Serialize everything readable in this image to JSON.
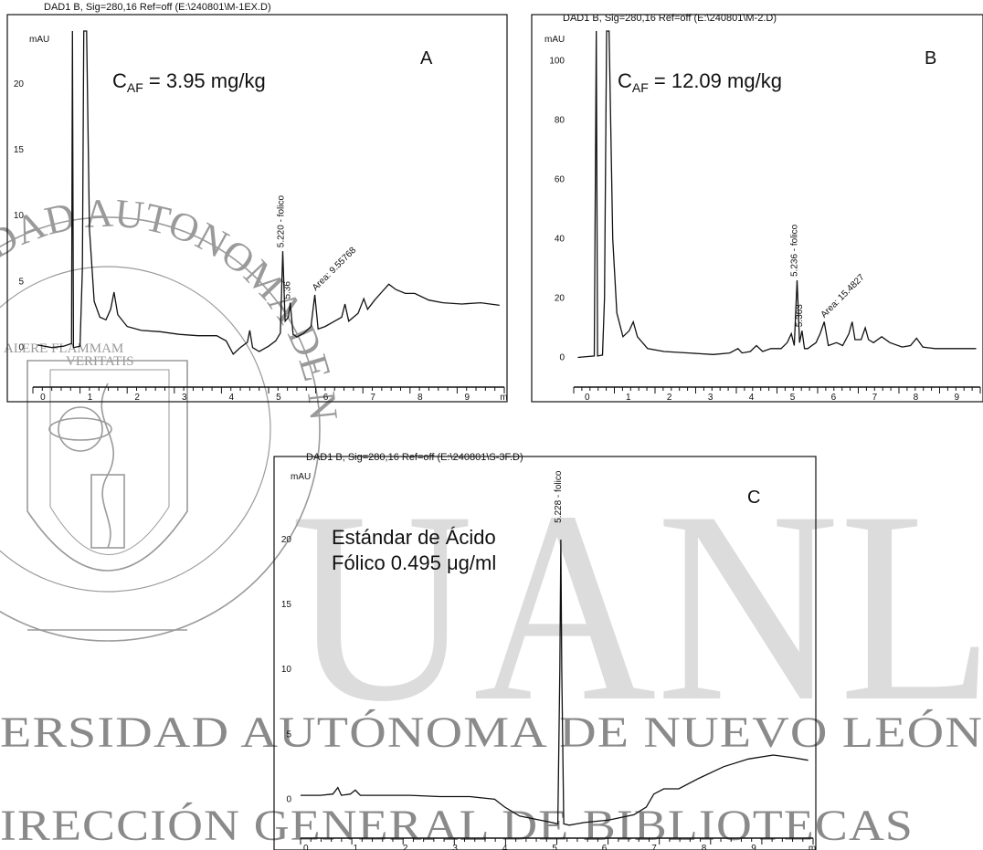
{
  "watermark": {
    "big": "UANL",
    "line1": "ERSIDAD AUTÓNOMA DE NUEVO LEÓN",
    "line2": "IRECCIÓN GENERAL DE BIBLIOTECAS",
    "seal_ring": "UNIVERSIDAD AUTONOMA DE NUEVO LEON",
    "seal_motto1": "ALERE FLAMMAM",
    "seal_motto2": "VERITATIS"
  },
  "colors": {
    "ink": "#111111",
    "watermark_light": "#dcdcdc",
    "watermark_dark": "#8a8a8a"
  },
  "chart_data": [
    {
      "type": "line",
      "panel_letter": "A",
      "header": "DAD1 B, Sig=280,16 Ref=off (E:\\240801\\M-1EX.D)",
      "ylabel": "mAU",
      "annotation_main": "C",
      "annotation_sub": "AF",
      "annotation_rest": " = 3.95 mg/kg",
      "xlim": [
        -0.1,
        9.9
      ],
      "ylim": [
        -3,
        24
      ],
      "xticks": [
        "0",
        "1",
        "2",
        "3",
        "4",
        "5",
        "6",
        "7",
        "8",
        "9",
        "m"
      ],
      "yticks": [
        {
          "v": 0,
          "t": "0"
        },
        {
          "v": 5,
          "t": "5"
        },
        {
          "v": 10,
          "t": "10"
        },
        {
          "v": 15,
          "t": "15"
        },
        {
          "v": 20,
          "t": "20"
        }
      ],
      "peak_labels": [
        {
          "x": 5.22,
          "y": 7.3,
          "text": "5.220 - folico"
        },
        {
          "x": 5.36,
          "y": 3.4,
          "text": "5.36"
        },
        {
          "x": 5.9,
          "y": 4.0,
          "text": "Area: 9.55768"
        }
      ],
      "points": [
        [
          0.0,
          0.2
        ],
        [
          0.3,
          0.0
        ],
        [
          0.55,
          0.1
        ],
        [
          0.72,
          0.3
        ],
        [
          0.74,
          24
        ],
        [
          0.76,
          0.0
        ],
        [
          0.9,
          0.1
        ],
        [
          0.95,
          6
        ],
        [
          0.98,
          24
        ],
        [
          1.04,
          24
        ],
        [
          1.1,
          9
        ],
        [
          1.2,
          3.5
        ],
        [
          1.32,
          2.3
        ],
        [
          1.45,
          2.1
        ],
        [
          1.55,
          2.9
        ],
        [
          1.62,
          4.2
        ],
        [
          1.7,
          2.5
        ],
        [
          1.9,
          1.6
        ],
        [
          2.2,
          1.3
        ],
        [
          2.6,
          1.2
        ],
        [
          3.0,
          1.0
        ],
        [
          3.4,
          0.9
        ],
        [
          3.8,
          0.9
        ],
        [
          4.0,
          0.5
        ],
        [
          4.15,
          -0.5
        ],
        [
          4.3,
          0.0
        ],
        [
          4.45,
          0.4
        ],
        [
          4.5,
          1.3
        ],
        [
          4.56,
          0.0
        ],
        [
          4.7,
          -0.3
        ],
        [
          4.9,
          0.1
        ],
        [
          5.05,
          0.5
        ],
        [
          5.15,
          1.1
        ],
        [
          5.2,
          7.3
        ],
        [
          5.25,
          2.0
        ],
        [
          5.32,
          2.3
        ],
        [
          5.36,
          3.4
        ],
        [
          5.42,
          1.0
        ],
        [
          5.5,
          0.8
        ],
        [
          5.65,
          1.1
        ],
        [
          5.8,
          1.6
        ],
        [
          5.88,
          4.0
        ],
        [
          5.95,
          1.4
        ],
        [
          6.1,
          1.6
        ],
        [
          6.3,
          2.0
        ],
        [
          6.45,
          2.3
        ],
        [
          6.52,
          3.3
        ],
        [
          6.6,
          2.0
        ],
        [
          6.8,
          2.6
        ],
        [
          6.92,
          3.7
        ],
        [
          7.0,
          2.9
        ],
        [
          7.15,
          3.6
        ],
        [
          7.3,
          4.2
        ],
        [
          7.45,
          4.8
        ],
        [
          7.6,
          4.4
        ],
        [
          7.8,
          4.1
        ],
        [
          8.0,
          4.1
        ],
        [
          8.3,
          3.6
        ],
        [
          8.6,
          3.4
        ],
        [
          9.0,
          3.3
        ],
        [
          9.4,
          3.4
        ],
        [
          9.8,
          3.2
        ]
      ]
    },
    {
      "type": "line",
      "panel_letter": "B",
      "header": "DAD1 B, Sig=280,16 Ref=off (E:\\240801\\M-2.D)",
      "ylabel": "mAU",
      "annotation_main": "C",
      "annotation_sub": "AF",
      "annotation_rest": " = 12.09 mg/kg",
      "xlim": [
        -0.2,
        9.7
      ],
      "ylim": [
        -10,
        110
      ],
      "xticks": [
        "0",
        "1",
        "2",
        "3",
        "4",
        "5",
        "6",
        "7",
        "8",
        "9"
      ],
      "yticks": [
        {
          "v": 0,
          "t": "0"
        },
        {
          "v": 20,
          "t": "20"
        },
        {
          "v": 40,
          "t": "40"
        },
        {
          "v": 60,
          "t": "60"
        },
        {
          "v": 80,
          "t": "80"
        },
        {
          "v": 100,
          "t": "100"
        }
      ],
      "peak_labels": [
        {
          "x": 5.24,
          "y": 26,
          "text": "5.236 - folico"
        },
        {
          "x": 5.36,
          "y": 9,
          "text": "5.363"
        },
        {
          "x": 5.9,
          "y": 12,
          "text": "Area: 15.4827"
        }
      ],
      "points": [
        [
          -0.1,
          0.0
        ],
        [
          0.3,
          0.5
        ],
        [
          0.35,
          110
        ],
        [
          0.38,
          0.5
        ],
        [
          0.5,
          0.8
        ],
        [
          0.55,
          20
        ],
        [
          0.6,
          110
        ],
        [
          0.66,
          110
        ],
        [
          0.75,
          40
        ],
        [
          0.85,
          15
        ],
        [
          1.0,
          7
        ],
        [
          1.15,
          9
        ],
        [
          1.25,
          12
        ],
        [
          1.35,
          7
        ],
        [
          1.6,
          3
        ],
        [
          2.0,
          2
        ],
        [
          2.6,
          1.5
        ],
        [
          3.2,
          1
        ],
        [
          3.6,
          1.5
        ],
        [
          3.8,
          3
        ],
        [
          3.9,
          1.5
        ],
        [
          4.1,
          2
        ],
        [
          4.25,
          4
        ],
        [
          4.4,
          2
        ],
        [
          4.6,
          3
        ],
        [
          4.85,
          3
        ],
        [
          5.0,
          5
        ],
        [
          5.1,
          8
        ],
        [
          5.17,
          4
        ],
        [
          5.24,
          26
        ],
        [
          5.3,
          5
        ],
        [
          5.36,
          9
        ],
        [
          5.42,
          3
        ],
        [
          5.5,
          3
        ],
        [
          5.7,
          5
        ],
        [
          5.8,
          8
        ],
        [
          5.9,
          12
        ],
        [
          6.0,
          4
        ],
        [
          6.2,
          5
        ],
        [
          6.35,
          4
        ],
        [
          6.5,
          8
        ],
        [
          6.58,
          12
        ],
        [
          6.65,
          6
        ],
        [
          6.8,
          6
        ],
        [
          6.9,
          10
        ],
        [
          6.98,
          6
        ],
        [
          7.1,
          5
        ],
        [
          7.3,
          7
        ],
        [
          7.5,
          5
        ],
        [
          7.8,
          3.5
        ],
        [
          8.0,
          4
        ],
        [
          8.15,
          6.5
        ],
        [
          8.3,
          3.5
        ],
        [
          8.6,
          3
        ],
        [
          9.0,
          3
        ],
        [
          9.6,
          3
        ]
      ]
    },
    {
      "type": "line",
      "panel_letter": "C",
      "header": "DAD1 B, Sig=280,16 Ref=off (E:\\240801\\S-3F.D)",
      "ylabel": "mAU",
      "annotation_line1": "Estándar de Ácido",
      "annotation_line2": "Fólico 0.495 μg/ml",
      "xlim": [
        0,
        10.3
      ],
      "ylim": [
        -3,
        25
      ],
      "xticks": [
        "0",
        "1",
        "2",
        "3",
        "4",
        "5",
        "6",
        "7",
        "8",
        "9",
        "m"
      ],
      "yticks": [
        {
          "v": 0,
          "t": "0"
        },
        {
          "v": 5,
          "t": "5"
        },
        {
          "v": 10,
          "t": "10"
        },
        {
          "v": 15,
          "t": "15"
        },
        {
          "v": 20,
          "t": "20"
        }
      ],
      "peak_labels": [
        {
          "x": 5.23,
          "y": 21,
          "text": "5.228 - folico"
        }
      ],
      "points": [
        [
          0.0,
          0.3
        ],
        [
          0.4,
          0.3
        ],
        [
          0.65,
          0.4
        ],
        [
          0.75,
          0.9
        ],
        [
          0.82,
          0.3
        ],
        [
          1.0,
          0.4
        ],
        [
          1.1,
          0.7
        ],
        [
          1.2,
          0.3
        ],
        [
          1.6,
          0.3
        ],
        [
          2.2,
          0.3
        ],
        [
          2.8,
          0.2
        ],
        [
          3.4,
          0.2
        ],
        [
          3.9,
          0.0
        ],
        [
          4.1,
          -0.6
        ],
        [
          4.4,
          -1.3
        ],
        [
          4.8,
          -1.6
        ],
        [
          5.05,
          -1.8
        ],
        [
          5.17,
          -1.9
        ],
        [
          5.21,
          10
        ],
        [
          5.23,
          20
        ],
        [
          5.25,
          10
        ],
        [
          5.29,
          -1.9
        ],
        [
          5.4,
          -2.0
        ],
        [
          5.7,
          -1.8
        ],
        [
          6.2,
          -1.6
        ],
        [
          6.7,
          -1.2
        ],
        [
          6.95,
          -0.6
        ],
        [
          7.1,
          0.4
        ],
        [
          7.3,
          0.8
        ],
        [
          7.6,
          0.8
        ],
        [
          8.0,
          1.6
        ],
        [
          8.5,
          2.5
        ],
        [
          9.0,
          3.1
        ],
        [
          9.5,
          3.4
        ],
        [
          9.9,
          3.2
        ],
        [
          10.2,
          3.0
        ]
      ]
    }
  ]
}
